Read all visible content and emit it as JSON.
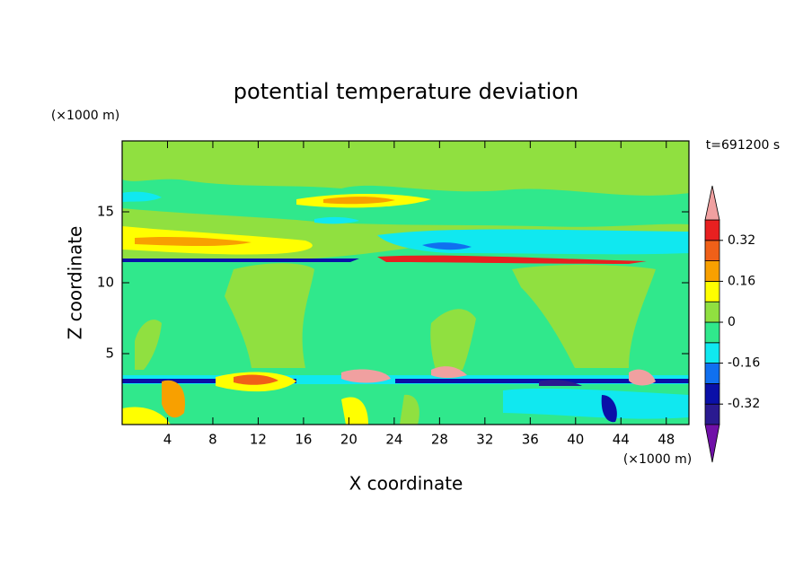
{
  "chart_data": {
    "type": "contour",
    "title": "potential temperature deviation",
    "time_label": "t=691200 s",
    "x_label": "X coordinate",
    "y_label": "Z coordinate",
    "x_unit": "(×1000 m)",
    "y_unit": "(×1000 m)",
    "xlim": [
      0,
      50
    ],
    "ylim": [
      0,
      20
    ],
    "xticks": [
      4,
      8,
      12,
      16,
      20,
      24,
      28,
      32,
      36,
      40,
      44,
      48
    ],
    "yticks": [
      5,
      10,
      15
    ],
    "colorbar": {
      "clim": [
        -0.4,
        0.4
      ],
      "ticks": [
        0.32,
        0.16,
        0,
        -0.16,
        -0.32
      ],
      "colors": [
        "#2a1a90",
        "#0a10a8",
        "#1070f0",
        "#10e8f0",
        "#30e88c",
        "#90e040",
        "#ffff00",
        "#f8a000",
        "#f06018",
        "#e82020"
      ],
      "under_color": "#7010a8",
      "over_color": "#f0a0a0"
    }
  }
}
